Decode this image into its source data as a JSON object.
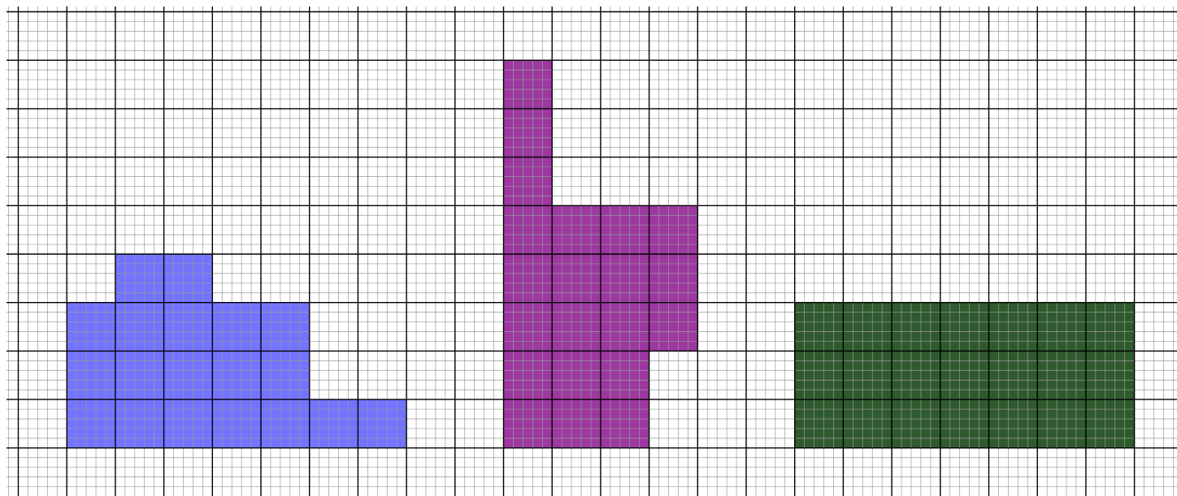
{
  "grid": {
    "major_columns": 24,
    "major_rows": 10,
    "subdivisions": 5,
    "major_color": "#000000",
    "minor_color": "#9a9a9a"
  },
  "shapes": [
    {
      "name": "blue-shape",
      "color": "#7373ff",
      "outline": "#4a4ad0",
      "cells": [
        [
          2,
          5
        ],
        [
          3,
          5
        ],
        [
          1,
          6
        ],
        [
          2,
          6
        ],
        [
          3,
          6
        ],
        [
          4,
          6
        ],
        [
          5,
          6
        ],
        [
          1,
          7
        ],
        [
          2,
          7
        ],
        [
          3,
          7
        ],
        [
          4,
          7
        ],
        [
          5,
          7
        ],
        [
          1,
          8
        ],
        [
          2,
          8
        ],
        [
          3,
          8
        ],
        [
          4,
          8
        ],
        [
          5,
          8
        ],
        [
          6,
          8
        ],
        [
          7,
          8
        ]
      ]
    },
    {
      "name": "purple-shape",
      "color": "#9c38a0",
      "outline": "#6a1f6e",
      "cells": [
        [
          10,
          1
        ],
        [
          10,
          2
        ],
        [
          10,
          3
        ],
        [
          10,
          4
        ],
        [
          11,
          4
        ],
        [
          12,
          4
        ],
        [
          13,
          4
        ],
        [
          10,
          5
        ],
        [
          11,
          5
        ],
        [
          12,
          5
        ],
        [
          13,
          5
        ],
        [
          10,
          6
        ],
        [
          11,
          6
        ],
        [
          12,
          6
        ],
        [
          13,
          6
        ],
        [
          10,
          7
        ],
        [
          11,
          7
        ],
        [
          12,
          7
        ],
        [
          10,
          8
        ],
        [
          11,
          8
        ],
        [
          12,
          8
        ]
      ]
    },
    {
      "name": "green-shape",
      "color": "#2f5a2e",
      "outline": "#1a3a19",
      "cells": [
        [
          16,
          6
        ],
        [
          17,
          6
        ],
        [
          18,
          6
        ],
        [
          19,
          6
        ],
        [
          20,
          6
        ],
        [
          21,
          6
        ],
        [
          22,
          6
        ],
        [
          16,
          7
        ],
        [
          17,
          7
        ],
        [
          18,
          7
        ],
        [
          19,
          7
        ],
        [
          20,
          7
        ],
        [
          21,
          7
        ],
        [
          22,
          7
        ],
        [
          16,
          8
        ],
        [
          17,
          8
        ],
        [
          18,
          8
        ],
        [
          19,
          8
        ],
        [
          20,
          8
        ],
        [
          21,
          8
        ],
        [
          22,
          8
        ]
      ]
    }
  ]
}
